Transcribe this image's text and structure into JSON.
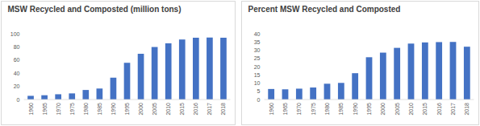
{
  "chart_data": [
    {
      "type": "bar",
      "title": "MSW Recycled and Composted (million tons)",
      "categories": [
        "1960",
        "1965",
        "1970",
        "1975",
        "1980",
        "1985",
        "1990",
        "1995",
        "2000",
        "2005",
        "2010",
        "2015",
        "2016",
        "2017",
        "2018"
      ],
      "values": [
        5.6,
        6.5,
        8.0,
        9.3,
        14.5,
        16.7,
        33.2,
        55.8,
        69.5,
        79.8,
        85.4,
        91.2,
        93.9,
        94.2,
        93.9
      ],
      "color": "#4472c4",
      "ylim": [
        0,
        100
      ],
      "yticks": [
        0,
        20,
        40,
        60,
        80,
        100
      ],
      "grid": false
    },
    {
      "type": "bar",
      "title": "Percent MSW Recycled and Composted",
      "categories": [
        "1960",
        "1965",
        "1970",
        "1975",
        "1980",
        "1985",
        "1990",
        "1995",
        "2000",
        "2005",
        "2010",
        "2015",
        "2016",
        "2017",
        "2018"
      ],
      "values": [
        6.4,
        6.2,
        6.6,
        7.3,
        9.6,
        10.1,
        16.0,
        25.7,
        28.5,
        31.4,
        34.0,
        34.7,
        34.9,
        35.0,
        32.1
      ],
      "color": "#4472c4",
      "ylim": [
        0,
        40
      ],
      "yticks": [
        0,
        5,
        10,
        15,
        20,
        25,
        30,
        35,
        40
      ],
      "grid": false
    }
  ]
}
